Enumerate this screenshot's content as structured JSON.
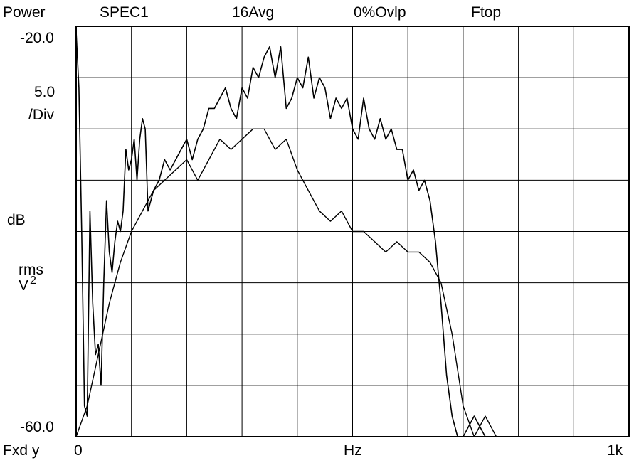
{
  "header": {
    "measurement": "Power",
    "trace": "SPEC1",
    "averaging": "16Avg",
    "overlap": "0%Ovlp",
    "window": "Ftop"
  },
  "left_labels": {
    "top_ref": "-20.0",
    "scale_value": "5.0",
    "scale_unit": "/Div",
    "unit_db": "dB",
    "unit_rms": "rms",
    "unit_v": "V",
    "unit_v_exp": "2",
    "bottom_ref": "-60.0"
  },
  "footer": {
    "x_mode": "Fxd y",
    "x_start": "0",
    "x_unit": "Hz",
    "x_end": "1k"
  },
  "chart_data": {
    "type": "line",
    "title": "",
    "xlabel": "Hz",
    "ylabel": "dB rms V2",
    "xlim": [
      0,
      1000
    ],
    "ylim": [
      -60,
      -20
    ],
    "x_divisions": 10,
    "y_divisions": 8,
    "grid": true,
    "series": [
      {
        "x": [
          0,
          5,
          10,
          15,
          20,
          25,
          30,
          35,
          40,
          45,
          50,
          55,
          60,
          65,
          70,
          75,
          80,
          85,
          90,
          95,
          100,
          105,
          110,
          115,
          120,
          125,
          130,
          140,
          150,
          160,
          170,
          180,
          190,
          200,
          210,
          220,
          230,
          240,
          250,
          260,
          270,
          280,
          290,
          300,
          310,
          320,
          330,
          340,
          350,
          360,
          370,
          380,
          390,
          400,
          410,
          420,
          430,
          440,
          450,
          460,
          470,
          480,
          490,
          500,
          510,
          520,
          530,
          540,
          550,
          560,
          570,
          580,
          590,
          600,
          610,
          620,
          630,
          640,
          650,
          660,
          670,
          680,
          690,
          700,
          720,
          740,
          760,
          780,
          800,
          820,
          840,
          860,
          880,
          900,
          920,
          940,
          960,
          980,
          1000
        ],
        "values": [
          -20.5,
          -26,
          -40,
          -57,
          -58,
          -38,
          -47,
          -52,
          -51,
          -55,
          -45,
          -37,
          -42,
          -44,
          -41,
          -39,
          -40,
          -38,
          -32,
          -34,
          -33,
          -31,
          -35,
          -31,
          -29,
          -30,
          -38,
          -36,
          -35,
          -33,
          -34,
          -33,
          -32,
          -31,
          -33,
          -31,
          -30,
          -28,
          -28,
          -27,
          -26,
          -28,
          -29,
          -26,
          -27,
          -24,
          -25,
          -23,
          -22,
          -25,
          -22,
          -28,
          -27,
          -25,
          -26,
          -23,
          -27,
          -25,
          -26,
          -29,
          -27,
          -28,
          -27,
          -30,
          -31,
          -27,
          -30,
          -31,
          -29,
          -31,
          -30,
          -32,
          -32,
          -35,
          -34,
          -36,
          -35,
          -37,
          -41,
          -47,
          -54,
          -58,
          -60,
          -60,
          -58,
          -60,
          -60,
          -60,
          -60,
          -60,
          -60,
          -60,
          -60,
          -60,
          -60,
          -60,
          -60,
          -60,
          -60
        ]
      },
      {
        "x": [
          0,
          20,
          40,
          60,
          80,
          100,
          120,
          140,
          160,
          180,
          200,
          220,
          240,
          260,
          280,
          300,
          320,
          340,
          360,
          380,
          400,
          420,
          440,
          460,
          480,
          500,
          520,
          540,
          560,
          580,
          600,
          620,
          640,
          660,
          680,
          700,
          720,
          740,
          760,
          780,
          800,
          820,
          840,
          860,
          880,
          900,
          920,
          940,
          960,
          980,
          1000
        ],
        "values": [
          -60,
          -57,
          -52,
          -47,
          -43,
          -40,
          -38,
          -36,
          -35,
          -34,
          -33,
          -35,
          -33,
          -31,
          -32,
          -31,
          -30,
          -30,
          -32,
          -31,
          -34,
          -36,
          -38,
          -39,
          -38,
          -40,
          -40,
          -41,
          -42,
          -41,
          -42,
          -42,
          -43,
          -45,
          -50,
          -57,
          -60,
          -58,
          -60,
          -60,
          -60,
          -60,
          -60,
          -60,
          -60,
          -60,
          -60,
          -60,
          -60,
          -60,
          -60
        ]
      }
    ]
  }
}
